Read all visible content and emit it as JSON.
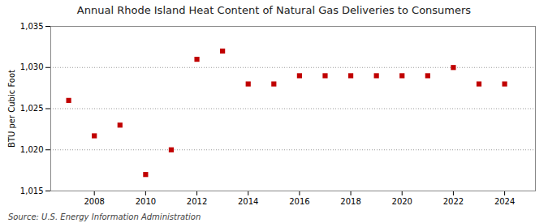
{
  "chart_data": {
    "type": "scatter",
    "title": "Annual Rhode Island Heat Content of Natural Gas Deliveries to Consumers",
    "ylabel": "BTU per Cubic Foot",
    "annotations": [
      "Source: U.S. Energy Information Administration"
    ],
    "x": [
      2007,
      2008,
      2009,
      2010,
      2011,
      2012,
      2013,
      2014,
      2015,
      2016,
      2017,
      2018,
      2019,
      2020,
      2021,
      2022,
      2023,
      2024
    ],
    "values": [
      1026.0,
      1021.7,
      1023.0,
      1017.0,
      1020.0,
      1031.0,
      1032.0,
      1028.0,
      1028.0,
      1029.0,
      1029.0,
      1029.0,
      1029.0,
      1029.0,
      1029.0,
      1030.0,
      1028.0,
      1028.0
    ],
    "color": "#c00000",
    "marker": "square",
    "xlim": [
      2006.3,
      2025.2
    ],
    "xticks": [
      2008,
      2010,
      2012,
      2014,
      2016,
      2018,
      2020,
      2022,
      2024
    ],
    "ylim": [
      1015,
      1035
    ],
    "yticks": [
      {
        "value": 1015,
        "label": "1,015"
      },
      {
        "value": 1020,
        "label": "1,020"
      },
      {
        "value": 1025,
        "label": "1,025"
      },
      {
        "value": 1030,
        "label": "1,030"
      },
      {
        "value": 1035,
        "label": "1,035"
      }
    ],
    "grid": true
  }
}
